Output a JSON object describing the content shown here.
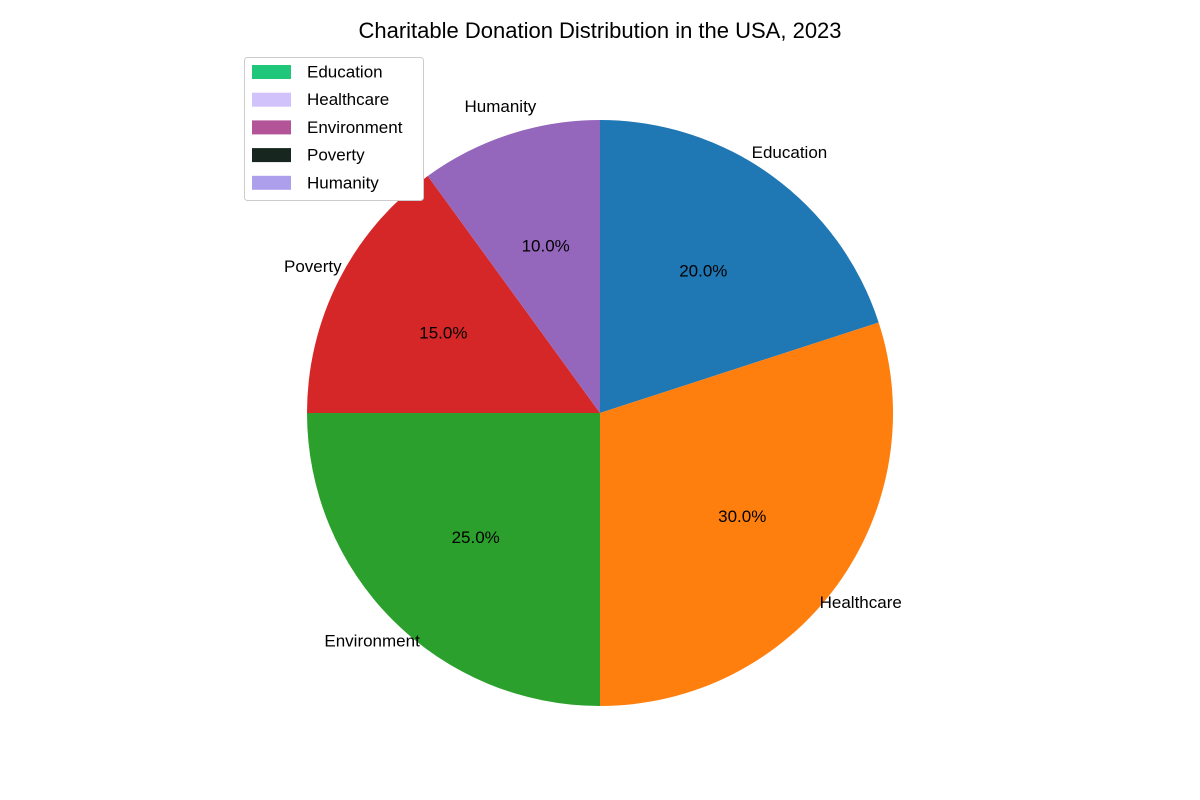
{
  "chart_data": {
    "type": "pie",
    "title": "Charitable Donation Distribution in the USA, 2023",
    "slices": [
      {
        "label": "Education",
        "value": 20,
        "pct_label": "20.0%",
        "color": "#1f77b4"
      },
      {
        "label": "Healthcare",
        "value": 30,
        "pct_label": "30.0%",
        "color": "#ff7f0e"
      },
      {
        "label": "Environment",
        "value": 25,
        "pct_label": "25.0%",
        "color": "#2ca02c"
      },
      {
        "label": "Poverty",
        "value": 15,
        "pct_label": "15.0%",
        "color": "#d62728"
      },
      {
        "label": "Humanity",
        "value": 10,
        "pct_label": "10.0%",
        "color": "#9467bd"
      }
    ],
    "start_angle_deg": 90,
    "direction": "clockwise",
    "legend": {
      "placement": "upper-left",
      "entries": [
        {
          "label": "Education",
          "color": "#20c77a"
        },
        {
          "label": "Healthcare",
          "color": "#d2c2fc"
        },
        {
          "label": "Environment",
          "color": "#b25497"
        },
        {
          "label": "Poverty",
          "color": "#17261f"
        },
        {
          "label": "Humanity",
          "color": "#ae9fec"
        }
      ]
    }
  }
}
